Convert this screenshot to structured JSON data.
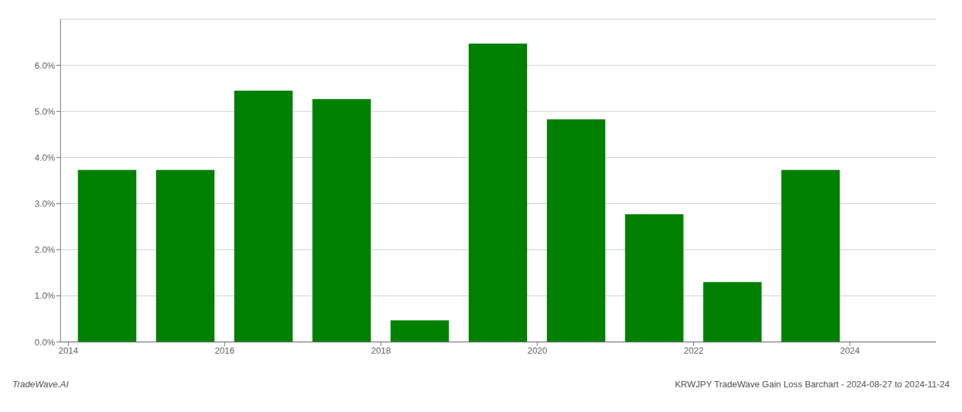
{
  "chart_data": {
    "type": "bar",
    "x": [
      2014,
      2015,
      2016,
      2017,
      2018,
      2019,
      2020,
      2021,
      2022,
      2023
    ],
    "values": [
      3.73,
      3.73,
      5.45,
      5.27,
      0.47,
      6.47,
      4.83,
      2.77,
      1.3,
      3.73
    ],
    "color": "#008000",
    "xlim": [
      2013.4,
      2024.6
    ],
    "xticks": [
      {
        "value": 2013.5,
        "label": "2014"
      },
      {
        "value": 2015.5,
        "label": "2016"
      },
      {
        "value": 2017.5,
        "label": "2018"
      },
      {
        "value": 2019.5,
        "label": "2020"
      },
      {
        "value": 2021.5,
        "label": "2022"
      },
      {
        "value": 2023.5,
        "label": "2024"
      }
    ],
    "ylim": [
      0,
      7.0
    ],
    "yticks": [
      {
        "value": 0.0,
        "label": "0.0%"
      },
      {
        "value": 1.0,
        "label": "1.0%"
      },
      {
        "value": 2.0,
        "label": "2.0%"
      },
      {
        "value": 3.0,
        "label": "3.0%"
      },
      {
        "value": 4.0,
        "label": "4.0%"
      },
      {
        "value": 5.0,
        "label": "5.0%"
      },
      {
        "value": 6.0,
        "label": "6.0%"
      }
    ],
    "grid": true,
    "annotations": [
      "TradeWave.AI",
      "KRWJPY TradeWave Gain Loss Barchart - 2024-08-27 to 2024-11-24"
    ]
  }
}
